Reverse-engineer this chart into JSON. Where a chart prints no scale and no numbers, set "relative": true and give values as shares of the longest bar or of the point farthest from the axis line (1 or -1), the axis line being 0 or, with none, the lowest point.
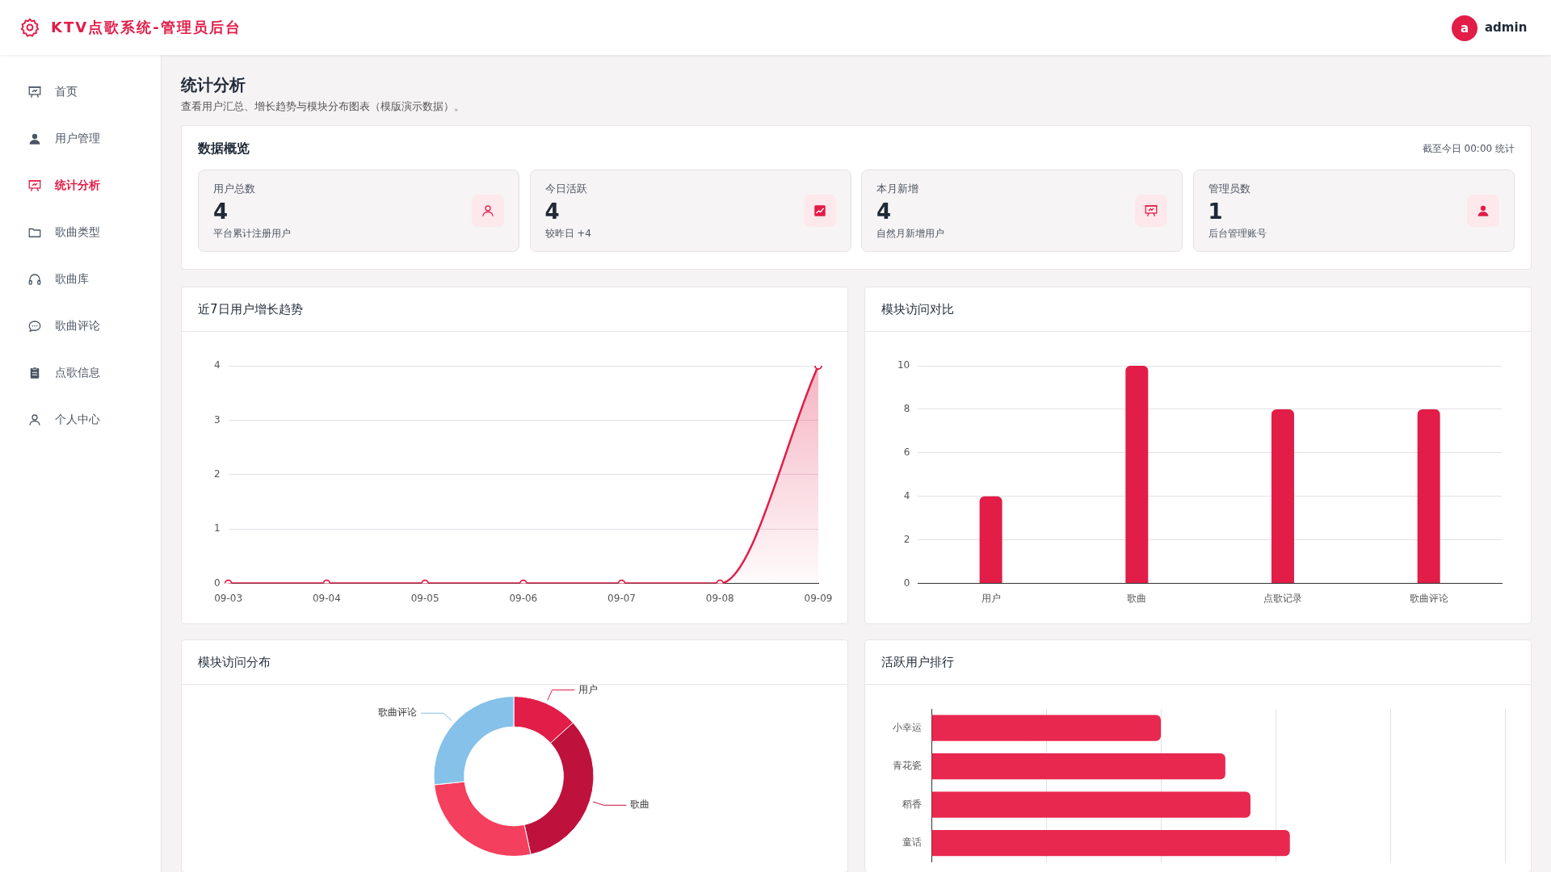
{
  "chart_data": [
    {
      "type": "other",
      "title": "统计分析",
      "subtitle": "查看用户汇总、增长趋势与模块分布图表（模版演示数据）。",
      "annotations": [
        "KTV点歌系统-管理员后台",
        "a",
        "admin",
        "首页",
        "用户管理",
        "统计分析",
        "歌曲类型",
        "歌曲库",
        "歌曲评论",
        "点歌信息",
        "个人中心"
      ]
    },
    {
      "type": "other",
      "title": "数据概览",
      "categories": [
        "用户总数",
        "今日活跃",
        "本月新增",
        "管理员数"
      ],
      "values": [
        4,
        4,
        4,
        1
      ],
      "data_labels": true,
      "annotations": [
        "截至今日 00:00 统计",
        "平台累计注册用户",
        "较昨日 +4",
        "自然月新增用户",
        "后台管理账号"
      ]
    },
    {
      "type": "area",
      "title": "近7日用户增长趋势",
      "categories": [
        "09-03",
        "09-04",
        "09-05",
        "09-06",
        "09-07",
        "09-08",
        "09-09"
      ],
      "values": [
        0,
        0,
        0,
        0,
        0,
        0,
        4
      ],
      "color": "#e11d48",
      "ylim": [
        0,
        4
      ],
      "yticks": [
        0,
        1,
        2,
        3,
        4
      ],
      "grid": "y",
      "marker": "circle"
    },
    {
      "type": "bar",
      "title": "模块访问对比",
      "categories": [
        "用户",
        "歌曲",
        "点歌记录",
        "歌曲评论"
      ],
      "values": [
        4,
        10,
        8,
        8
      ],
      "color": "#e11d48",
      "ylim": [
        0,
        10
      ],
      "yticks": [
        0,
        2,
        4,
        6,
        8,
        10
      ],
      "grid": "y"
    },
    {
      "type": "donut",
      "title": "模块访问分布",
      "categories": [
        "用户",
        "歌曲",
        null,
        "歌曲评论"
      ],
      "values": [
        13.3,
        33.3,
        26.7,
        26.7
      ],
      "colors": [
        "#e11d48",
        "#be123c",
        "#f43f5e",
        "#85c1e9"
      ]
    },
    {
      "type": "bar",
      "title": "活跃用户排行",
      "orientation": "horizontal",
      "relative": true,
      "categories": [
        "小幸运",
        "青花瓷",
        "稻香",
        "童话"
      ],
      "values": [
        0.64,
        0.82,
        0.89,
        1
      ],
      "color": "#e8284f",
      "grid": "x"
    }
  ]
}
